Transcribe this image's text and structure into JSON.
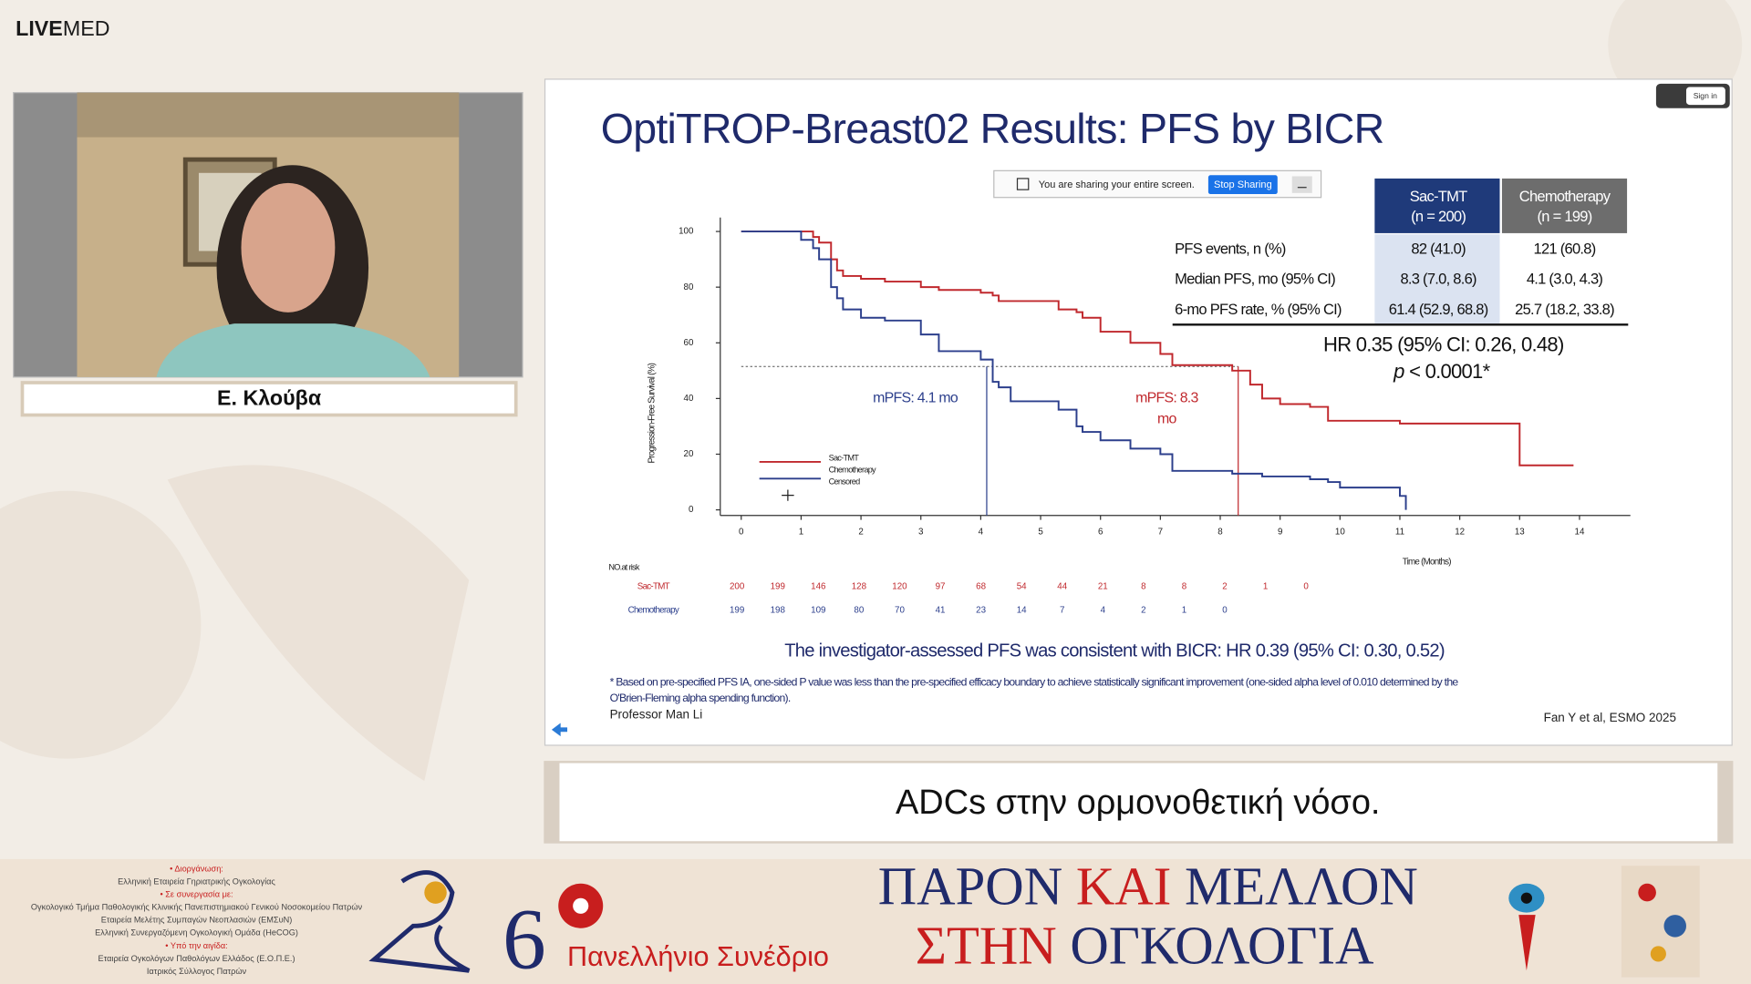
{
  "header": {
    "logo_bold": "LIVE",
    "logo_light": "MED"
  },
  "speaker": {
    "name": "Ε. Κλούβα"
  },
  "screen_share": {
    "message": "You are sharing your entire screen.",
    "button": "Stop Sharing",
    "sign_in": "Sign in"
  },
  "slide": {
    "title": "OptiTROP-Breast02 Results: PFS by BICR",
    "table": {
      "columns": [
        [
          "Sac-TMT",
          "(n = 200)"
        ],
        [
          "Chemotherapy",
          "(n = 199)"
        ]
      ],
      "rows": [
        [
          "PFS events, n (%)",
          "82 (41.0)",
          "121 (60.8)"
        ],
        [
          "Median PFS, mo (95% CI)",
          "8.3 (7.0, 8.6)",
          "4.1 (3.0, 4.3)"
        ],
        [
          "6-mo PFS rate, % (95% CI)",
          "61.4 (52.9, 68.8)",
          "25.7 (18.2, 33.8)"
        ]
      ]
    },
    "hr": "HR 0.35 (95% CI: 0.26, 0.48)",
    "p_value": {
      "symbol": "p",
      "text": " < 0.0001*"
    },
    "conclusion": "The investigator-assessed PFS was consistent with BICR: HR 0.39 (95% CI: 0.30, 0.52)",
    "footnote": [
      "* Based on pre-specified PFS IA, one-sided P value was less than the pre-specified efficacy boundary to achieve statistically significant improvement (one-sided alpha level of 0.010 determined by the",
      "O'Brien-Fleming alpha spending function)."
    ],
    "presenter": "Professor Man Li",
    "reference": "Fan Y et al, ESMO 2025"
  },
  "chart_data": {
    "type": "line",
    "step": "post",
    "xlabel": "Time (Months)",
    "ylabel": "Progression-Free Survival (%)",
    "x": [
      0,
      0.6,
      1,
      1.2,
      1.3,
      1.5,
      1.6,
      1.7,
      2,
      2.4,
      3,
      3.3,
      4,
      4.2,
      4.3,
      4.5,
      5.3,
      5.6,
      5.7,
      6,
      6.5,
      7,
      7.2,
      8.2,
      8.5,
      8.7,
      9,
      9.5,
      9.8,
      10,
      11,
      11.1,
      13,
      13.9
    ],
    "series": [
      {
        "name": "Sac-TMT",
        "color": "#c0282d",
        "values": [
          100,
          100,
          100,
          98,
          96,
          90,
          86,
          84,
          83,
          82,
          80,
          79,
          78,
          77,
          75,
          75,
          72,
          71,
          69,
          64,
          60,
          56,
          52,
          50,
          45,
          40,
          38,
          37,
          32,
          32,
          31,
          31,
          16,
          16
        ]
      },
      {
        "name": "Chemotherapy",
        "color": "#2c3f8c",
        "values": [
          100,
          100,
          97,
          94,
          90,
          80,
          76,
          72,
          69,
          68,
          63,
          57,
          54,
          46,
          44,
          39,
          36,
          30,
          28,
          25,
          22,
          20,
          14,
          13,
          13,
          12,
          12,
          11,
          10,
          8,
          5,
          0,
          null,
          null
        ]
      }
    ],
    "xlim": [
      -0.35,
      14.85
    ],
    "ylim": [
      -2,
      105
    ],
    "xticks": [
      0,
      1,
      2,
      3,
      4,
      5,
      6,
      7,
      8,
      9,
      10,
      11,
      12,
      13,
      14
    ],
    "yticks": [
      0,
      20,
      40,
      60,
      80,
      100
    ],
    "annotations": [
      {
        "lines": [
          "mPFS: 4.1 mo"
        ],
        "x": 4.1,
        "color": "#2c3f8c"
      },
      {
        "lines": [
          "mPFS: 8.3",
          "mo"
        ],
        "x": 8.3,
        "color": "#c0282d"
      }
    ],
    "legend_extra": "Censored",
    "at_risk": {
      "label": "NO.at risk",
      "rows": [
        {
          "name": "Sac-TMT",
          "color": "#c0282d",
          "values": [
            200,
            199,
            146,
            128,
            120,
            97,
            68,
            54,
            44,
            21,
            8,
            8,
            2,
            1,
            0
          ]
        },
        {
          "name": "Chemotherapy",
          "color": "#2c3f8c",
          "values": [
            199,
            198,
            109,
            80,
            70,
            41,
            23,
            14,
            7,
            4,
            2,
            1,
            0
          ]
        }
      ]
    }
  },
  "caption": "ADCs στην ορμονοθετική νόσο.",
  "footer": {
    "organizers": [
      {
        "text": "• Διοργάνωση:",
        "heading": true
      },
      {
        "text": "Ελληνική Εταιρεία Γηριατρικής Ογκολογίας",
        "heading": false
      },
      {
        "text": "• Σε συνεργασία με:",
        "heading": true
      },
      {
        "text": "Ογκολογικό Τμήμα Παθολογικής Κλινικής Πανεπιστημιακού Γενικού Νοσοκομείου Πατρών",
        "heading": false
      },
      {
        "text": "Εταιρεία Μελέτης Συμπαγών Νεοπλασιών (ΕΜΣυΝ)",
        "heading": false
      },
      {
        "text": "Ελληνική Συνεργαζόμενη Ογκολογική Ομάδα (HeCOG)",
        "heading": false
      },
      {
        "text": "• Υπό την αιγίδα:",
        "heading": true
      },
      {
        "text": "Εταιρεία Ογκολόγων Παθολόγων Ελλάδος (Ε.Ο.Π.Ε.)",
        "heading": false
      },
      {
        "text": "Ιατρικός Σύλλογος Πατρών",
        "heading": false
      }
    ],
    "edition": "6",
    "congress": "Πανελλήνιο Συνέδριο",
    "title_line1": [
      "ΠΑΡΟΝ ",
      "ΚΑΙ",
      " ΜΕΛΛΟΝ"
    ],
    "title_line2": [
      "ΣΤΗΝ",
      " ΟΓΚΟΛΟΓΙΑ"
    ]
  }
}
